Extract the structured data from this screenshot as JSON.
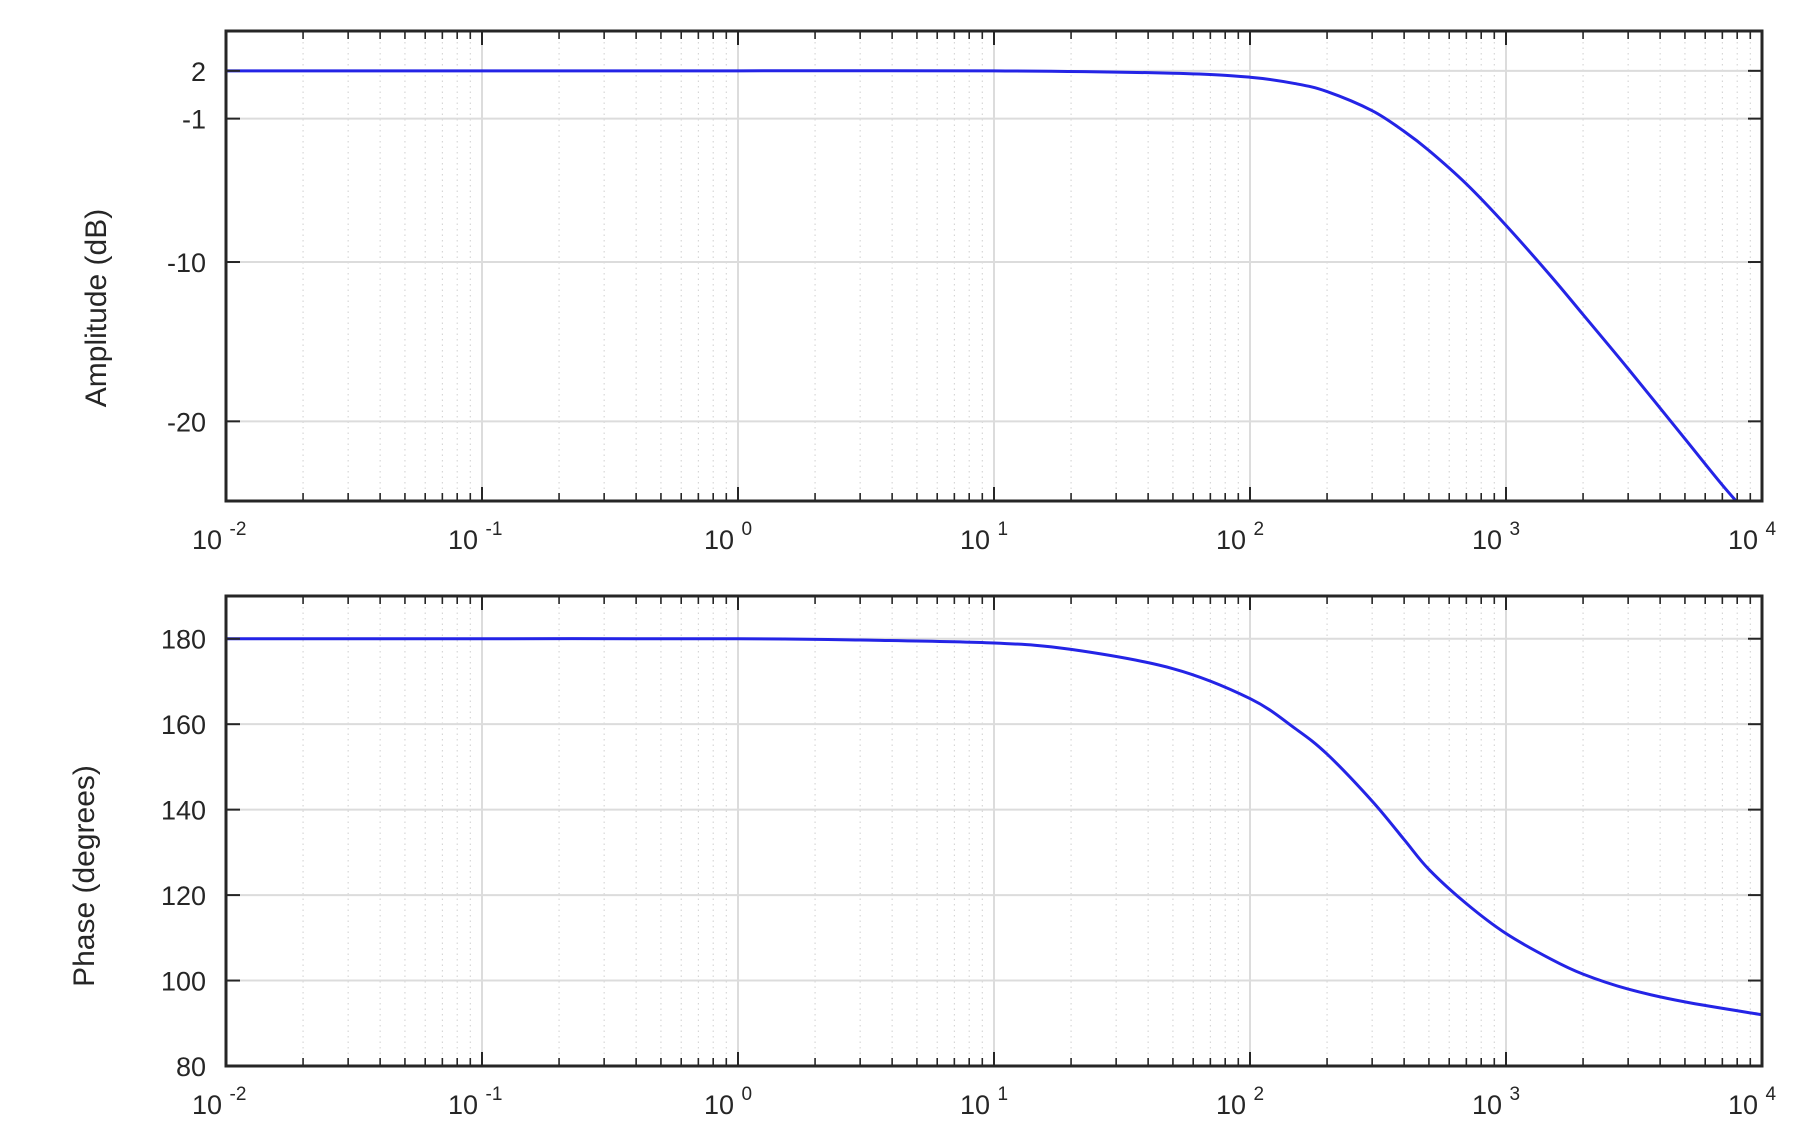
{
  "chart_data": [
    {
      "type": "line",
      "xscale": "log",
      "xlim": [
        0.01,
        10000
      ],
      "ylim": [
        -25,
        4.5
      ],
      "ylabel": "Amplitude (dB)",
      "xlabel": "",
      "grid": true,
      "minor_grid": true,
      "yticks": [
        2,
        -1,
        -10,
        -20
      ],
      "xticks": [
        {
          "base": "10",
          "exp": "-2"
        },
        {
          "base": "10",
          "exp": "-1"
        },
        {
          "base": "10",
          "exp": "0"
        },
        {
          "base": "10",
          "exp": "1"
        },
        {
          "base": "10",
          "exp": "2"
        },
        {
          "base": "10",
          "exp": "3"
        },
        {
          "base": "10",
          "exp": "4"
        }
      ],
      "series": [
        {
          "color": "#2424e6",
          "x": [
            0.01,
            0.1,
            1,
            10,
            50,
            100,
            150,
            200,
            300,
            400,
            500,
            700,
            1000,
            1500,
            2000,
            3000,
            5000,
            7000,
            9000
          ],
          "y": [
            2.0,
            2.0,
            2.0,
            2.0,
            1.85,
            1.6,
            1.2,
            0.7,
            -0.5,
            -1.8,
            -3.0,
            -5.1,
            -7.7,
            -10.9,
            -13.3,
            -16.7,
            -21.1,
            -24.0,
            -26.0
          ]
        }
      ]
    },
    {
      "type": "line",
      "xscale": "log",
      "xlim": [
        0.01,
        10000
      ],
      "ylim": [
        80,
        190
      ],
      "ylabel": "Phase (degrees)",
      "xlabel": "",
      "grid": true,
      "minor_grid": true,
      "yticks": [
        180,
        160,
        140,
        120,
        100,
        80
      ],
      "xticks": [
        {
          "base": "10",
          "exp": "-2"
        },
        {
          "base": "10",
          "exp": "-1"
        },
        {
          "base": "10",
          "exp": "0"
        },
        {
          "base": "10",
          "exp": "1"
        },
        {
          "base": "10",
          "exp": "2"
        },
        {
          "base": "10",
          "exp": "3"
        },
        {
          "base": "10",
          "exp": "4"
        }
      ],
      "series": [
        {
          "color": "#2424e6",
          "x": [
            0.01,
            0.1,
            1,
            3,
            10,
            20,
            50,
            100,
            150,
            200,
            300,
            400,
            500,
            700,
            1000,
            1500,
            2000,
            3000,
            5000,
            10000
          ],
          "y": [
            180,
            180,
            180,
            179.7,
            179,
            177.5,
            173,
            166,
            159,
            153,
            142,
            133,
            126,
            118,
            111,
            105,
            101.5,
            98,
            95,
            92
          ]
        }
      ]
    }
  ]
}
